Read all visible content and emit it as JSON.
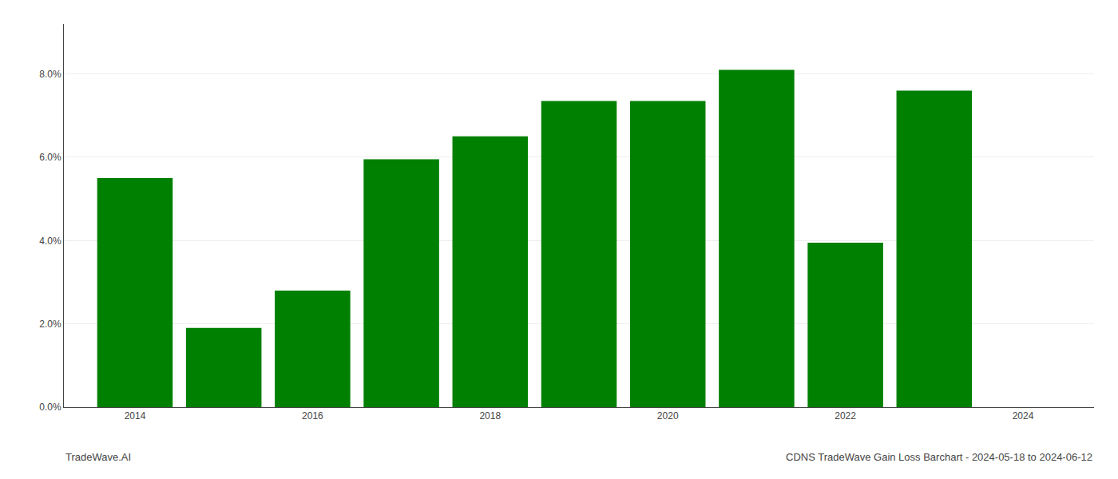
{
  "chart_data": {
    "type": "bar",
    "title": "CDNS TradeWave Gain Loss Barchart - 2024-05-18 to 2024-06-12",
    "annotations": [
      "TradeWave.AI"
    ],
    "x": [
      2014,
      2015,
      2016,
      2017,
      2018,
      2019,
      2020,
      2021,
      2022,
      2023
    ],
    "values": [
      0.055,
      0.019,
      0.028,
      0.0595,
      0.065,
      0.0735,
      0.0735,
      0.081,
      0.0395,
      0.076
    ],
    "color": "#008000",
    "xlim": [
      2013.2,
      2024.8
    ],
    "xticks": [
      2014,
      2016,
      2018,
      2020,
      2022,
      2024
    ],
    "ylim": [
      0,
      0.092
    ],
    "yticks": [
      {
        "value": 0.0,
        "label": "0.0%"
      },
      {
        "value": 0.02,
        "label": "2.0%"
      },
      {
        "value": 0.04,
        "label": "4.0%"
      },
      {
        "value": 0.06,
        "label": "6.0%"
      },
      {
        "value": 0.08,
        "label": "8.0%"
      }
    ],
    "grid": true
  }
}
